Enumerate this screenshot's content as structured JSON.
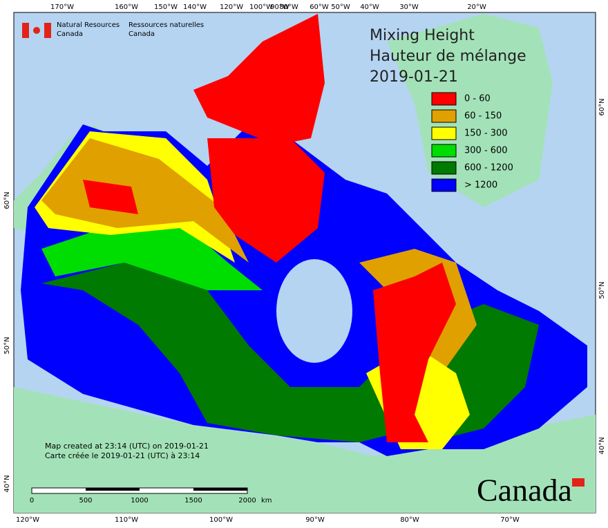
{
  "header": {
    "english": [
      "Natural Resources",
      "Canada"
    ],
    "french": [
      "Ressources naturelles",
      "Canada"
    ]
  },
  "legend": {
    "title": [
      "Mixing Height",
      "Hauteur de mélange",
      "2019-01-21"
    ],
    "items": [
      {
        "label": "0 - 60",
        "color": "#ff0000"
      },
      {
        "label": "60 - 150",
        "color": "#e0a000"
      },
      {
        "label": "150 - 300",
        "color": "#ffff00"
      },
      {
        "label": "300 - 600",
        "color": "#00dd00"
      },
      {
        "label": "600 - 1200",
        "color": "#007a00"
      },
      {
        "label": "> 1200",
        "color": "#0000ff"
      }
    ]
  },
  "graticule": {
    "top": [
      "170°W",
      "160°W",
      "150°W",
      "140°W",
      "120°W",
      "100°W",
      "90°W",
      "80°W",
      "60°W",
      "50°W",
      "40°W",
      "30°W",
      "20°W"
    ],
    "bottom": [
      "120°W",
      "110°W",
      "100°W",
      "90°W",
      "80°W",
      "70°W"
    ],
    "left": [
      "60°N",
      "50°N",
      "40°N"
    ],
    "right": [
      "60°N",
      "50°N",
      "40°N"
    ]
  },
  "scale_bar": {
    "labels": [
      "0",
      "500",
      "1000",
      "1500",
      "2000"
    ],
    "unit": "km"
  },
  "notes": [
    "Map created at 23:14 (UTC) on 2019-01-21",
    "Carte créée le 2019-01-21 (UTC) à 23:14"
  ],
  "wordmark": "Canada"
}
